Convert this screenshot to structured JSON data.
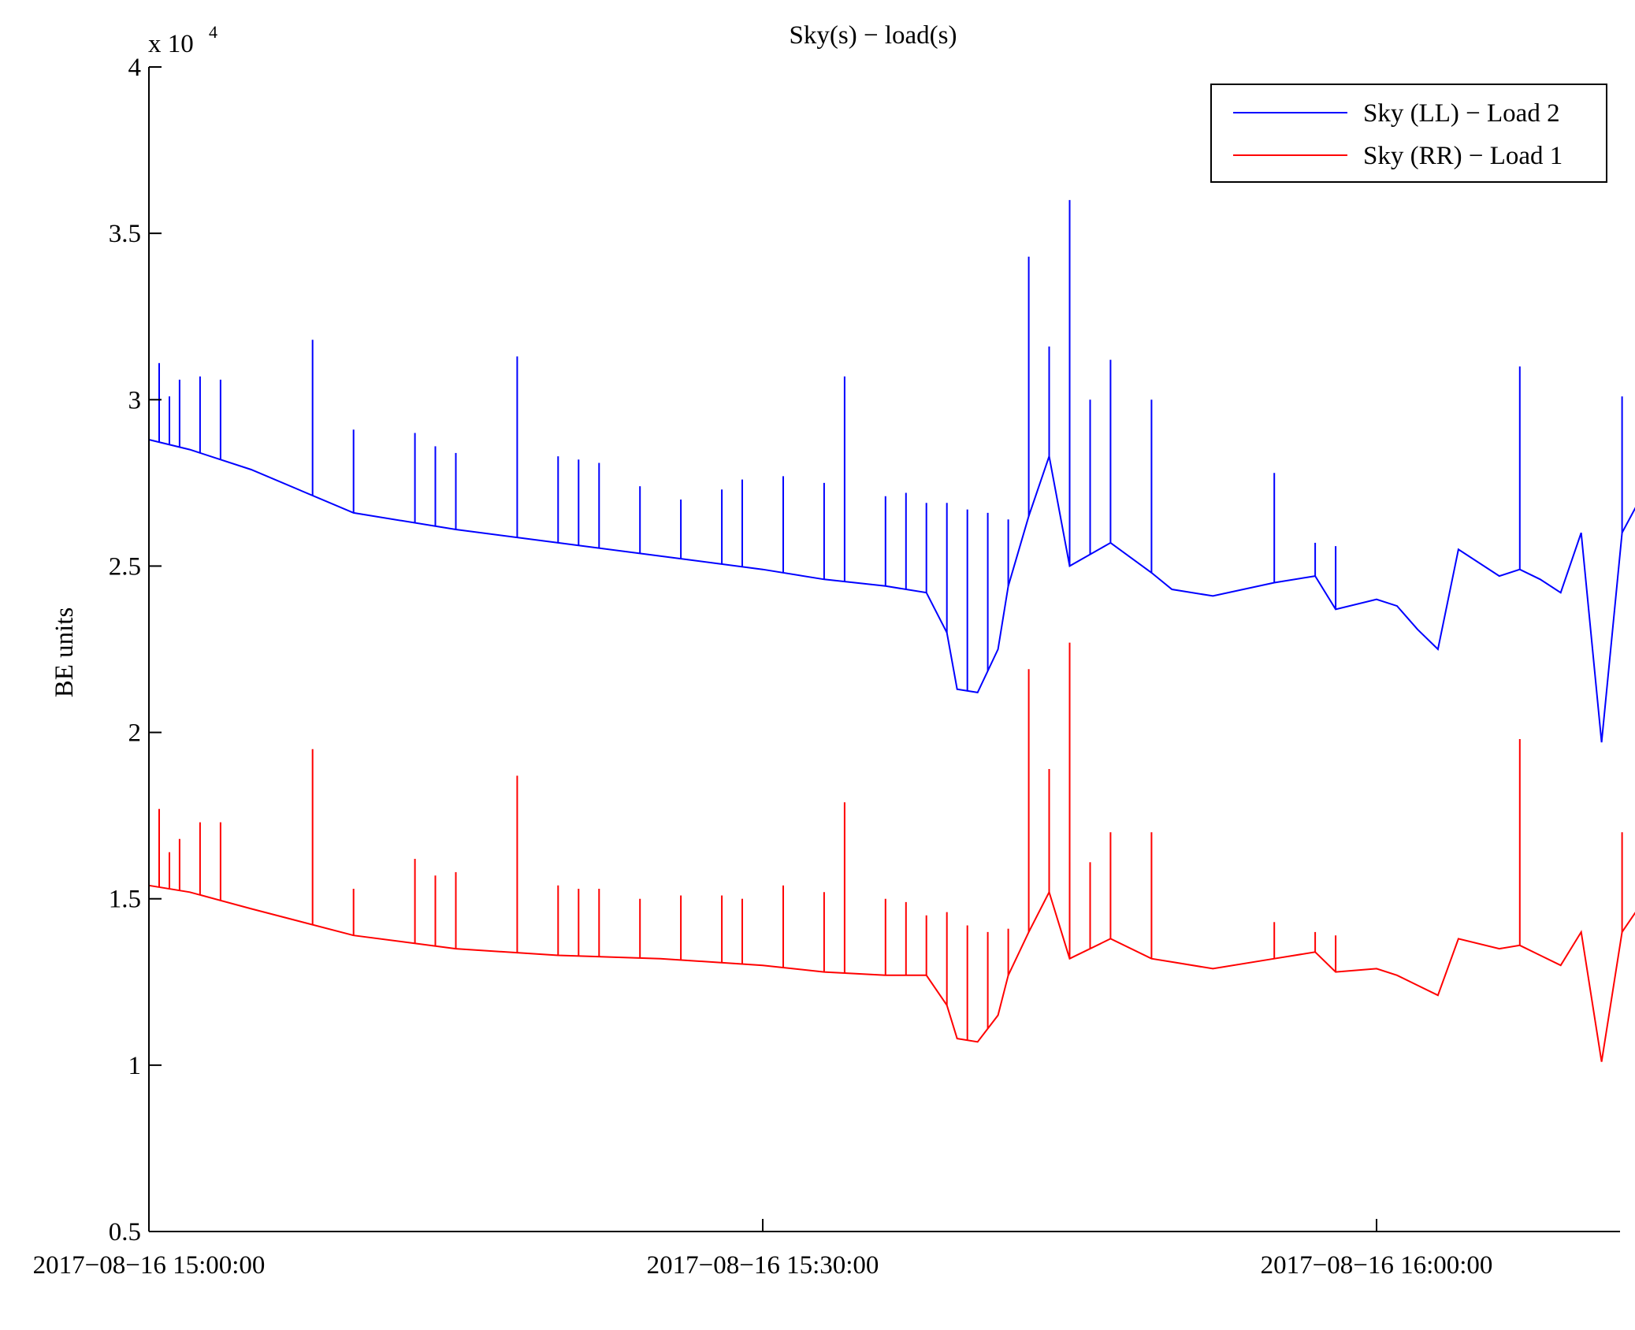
{
  "chart_data": {
    "type": "line",
    "title": "Sky(s) − load(s)",
    "ylabel": "BE units",
    "xlabel": "",
    "y_exponent_label": "x 10",
    "y_exponent_power": "4",
    "ylim": [
      5000,
      40000
    ],
    "y_ticks": [
      5000,
      10000,
      15000,
      20000,
      25000,
      30000,
      35000,
      40000
    ],
    "y_tick_labels": [
      "0.5",
      "1",
      "1.5",
      "2",
      "2.5",
      "3",
      "3.5",
      "4"
    ],
    "xlim_minutes": [
      0,
      70
    ],
    "x_ticks_minutes": [
      0,
      30,
      60
    ],
    "x_tick_labels": [
      "2017−08−16 15:00:00",
      "2017−08−16 15:30:00",
      "2017−08−16 16:00:00"
    ],
    "grid": false,
    "legend_position": "top-right",
    "series": [
      {
        "name": "Sky (LL) − Load 2",
        "color": "#0000ff",
        "points": [
          [
            0,
            28800
          ],
          [
            2,
            28500
          ],
          [
            5,
            27900
          ],
          [
            10,
            26600
          ],
          [
            15,
            26100
          ],
          [
            20,
            25700
          ],
          [
            25,
            25300
          ],
          [
            30,
            24900
          ],
          [
            33,
            24600
          ],
          [
            36,
            24400
          ],
          [
            38,
            24200
          ],
          [
            39,
            23000
          ],
          [
            39.5,
            21300
          ],
          [
            40.5,
            21200
          ],
          [
            41.5,
            22500
          ],
          [
            42,
            24400
          ],
          [
            43,
            26500
          ],
          [
            44,
            28300
          ],
          [
            45,
            25000
          ],
          [
            47,
            25700
          ],
          [
            49,
            24800
          ],
          [
            50,
            24300
          ],
          [
            52,
            24100
          ],
          [
            55,
            24500
          ],
          [
            57,
            24700
          ],
          [
            58,
            23700
          ],
          [
            60,
            24000
          ],
          [
            61,
            23800
          ],
          [
            62,
            23100
          ],
          [
            63,
            22500
          ],
          [
            64,
            25500
          ],
          [
            66,
            24700
          ],
          [
            67,
            24900
          ],
          [
            68,
            24600
          ],
          [
            69,
            24200
          ],
          [
            70,
            26000
          ],
          [
            71,
            19700
          ],
          [
            72,
            26000
          ],
          [
            74,
            28300
          ],
          [
            75,
            27800
          ],
          [
            76,
            18400
          ],
          [
            78,
            18300
          ],
          [
            79,
            27000
          ],
          [
            80,
            27400
          ],
          [
            81,
            19000
          ],
          [
            82,
            17500
          ],
          [
            83,
            27100
          ],
          [
            84,
            26900
          ],
          [
            85,
            17700
          ],
          [
            86,
            17700
          ],
          [
            87,
            21000
          ],
          [
            88,
            23200
          ],
          [
            89,
            22800
          ],
          [
            90,
            23000
          ]
        ],
        "spikes": [
          [
            0.5,
            31100
          ],
          [
            1,
            30100
          ],
          [
            1.5,
            30600
          ],
          [
            2.5,
            30700
          ],
          [
            3.5,
            30600
          ],
          [
            8,
            31800
          ],
          [
            10,
            29100
          ],
          [
            13,
            29000
          ],
          [
            14,
            28600
          ],
          [
            15,
            28400
          ],
          [
            18,
            31300
          ],
          [
            20,
            28300
          ],
          [
            21,
            28200
          ],
          [
            22,
            28100
          ],
          [
            24,
            27400
          ],
          [
            26,
            27000
          ],
          [
            28,
            27300
          ],
          [
            29,
            27600
          ],
          [
            31,
            27700
          ],
          [
            33,
            27500
          ],
          [
            34,
            30700
          ],
          [
            36,
            27100
          ],
          [
            37,
            27200
          ],
          [
            38,
            26900
          ],
          [
            39,
            26900
          ],
          [
            40,
            26700
          ],
          [
            41,
            26600
          ],
          [
            42,
            26400
          ],
          [
            43,
            34300
          ],
          [
            44,
            31600
          ],
          [
            45,
            36000
          ],
          [
            46,
            30000
          ],
          [
            47,
            31200
          ],
          [
            49,
            30000
          ],
          [
            55,
            27800
          ],
          [
            57,
            25700
          ],
          [
            58,
            25600
          ],
          [
            67,
            31000
          ],
          [
            72,
            30100
          ],
          [
            75,
            36800
          ],
          [
            77,
            27400
          ],
          [
            78,
            27400
          ],
          [
            80,
            27400
          ],
          [
            82,
            27400
          ],
          [
            86,
            30200
          ]
        ]
      },
      {
        "name": "Sky (RR) − Load 1",
        "color": "#ff0000",
        "points": [
          [
            0,
            15400
          ],
          [
            2,
            15200
          ],
          [
            5,
            14700
          ],
          [
            10,
            13900
          ],
          [
            15,
            13500
          ],
          [
            20,
            13300
          ],
          [
            25,
            13200
          ],
          [
            30,
            13000
          ],
          [
            33,
            12800
          ],
          [
            36,
            12700
          ],
          [
            38,
            12700
          ],
          [
            39,
            11800
          ],
          [
            39.5,
            10800
          ],
          [
            40.5,
            10700
          ],
          [
            41.5,
            11500
          ],
          [
            42,
            12700
          ],
          [
            43,
            14000
          ],
          [
            44,
            15200
          ],
          [
            45,
            13200
          ],
          [
            47,
            13800
          ],
          [
            49,
            13200
          ],
          [
            50,
            13100
          ],
          [
            52,
            12900
          ],
          [
            55,
            13200
          ],
          [
            57,
            13400
          ],
          [
            58,
            12800
          ],
          [
            60,
            12900
          ],
          [
            61,
            12700
          ],
          [
            62,
            12400
          ],
          [
            63,
            12100
          ],
          [
            64,
            13800
          ],
          [
            66,
            13500
          ],
          [
            67,
            13600
          ],
          [
            68,
            13300
          ],
          [
            69,
            13000
          ],
          [
            70,
            14000
          ],
          [
            71,
            10100
          ],
          [
            72,
            14000
          ],
          [
            74,
            15800
          ],
          [
            75,
            15600
          ],
          [
            76,
            9300
          ],
          [
            78,
            9200
          ],
          [
            79,
            15400
          ],
          [
            80,
            15400
          ],
          [
            81,
            9300
          ],
          [
            82,
            8500
          ],
          [
            83,
            15300
          ],
          [
            84,
            15200
          ],
          [
            85,
            8900
          ],
          [
            86,
            8900
          ],
          [
            87,
            10500
          ],
          [
            88,
            12400
          ],
          [
            89,
            12100
          ],
          [
            90,
            12200
          ]
        ],
        "spikes": [
          [
            0.5,
            17700
          ],
          [
            1,
            16400
          ],
          [
            1.5,
            16800
          ],
          [
            2.5,
            17300
          ],
          [
            3.5,
            17300
          ],
          [
            8,
            19500
          ],
          [
            10,
            15300
          ],
          [
            13,
            16200
          ],
          [
            14,
            15700
          ],
          [
            15,
            15800
          ],
          [
            18,
            18700
          ],
          [
            20,
            15400
          ],
          [
            21,
            15300
          ],
          [
            22,
            15300
          ],
          [
            24,
            15000
          ],
          [
            26,
            15100
          ],
          [
            28,
            15100
          ],
          [
            29,
            15000
          ],
          [
            31,
            15400
          ],
          [
            33,
            15200
          ],
          [
            34,
            17900
          ],
          [
            36,
            15000
          ],
          [
            37,
            14900
          ],
          [
            38,
            14500
          ],
          [
            39,
            14600
          ],
          [
            40,
            14200
          ],
          [
            41,
            14000
          ],
          [
            42,
            14100
          ],
          [
            43,
            21900
          ],
          [
            44,
            18900
          ],
          [
            45,
            22700
          ],
          [
            46,
            16100
          ],
          [
            47,
            17000
          ],
          [
            49,
            17000
          ],
          [
            55,
            14300
          ],
          [
            57,
            14000
          ],
          [
            58,
            13900
          ],
          [
            67,
            19800
          ],
          [
            72,
            17000
          ],
          [
            75,
            24500
          ],
          [
            77,
            15400
          ],
          [
            78,
            15400
          ],
          [
            80,
            15400
          ],
          [
            82,
            15400
          ],
          [
            86,
            18700
          ]
        ]
      }
    ]
  }
}
